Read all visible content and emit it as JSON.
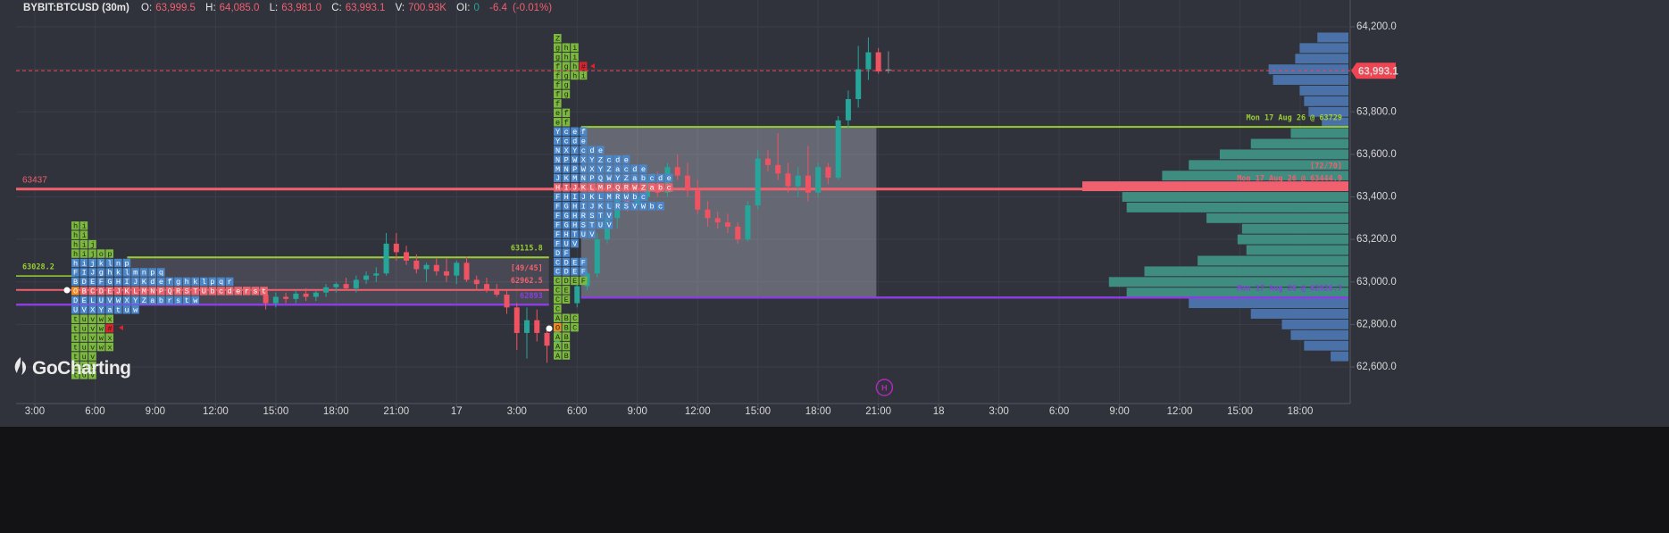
{
  "header": {
    "symbol": "BYBIT:BTCUSD (30m)",
    "o_label": "O:",
    "o": "63,999.5",
    "h_label": "H:",
    "h": "64,085.0",
    "l_label": "L:",
    "l": "63,981.0",
    "c_label": "C:",
    "c": "63,993.1",
    "v_label": "V:",
    "v": "700.93K",
    "oi_label": "OI:",
    "oi": "0",
    "change": "-6.4",
    "change_pct": "(-0.01%)"
  },
  "logo": "GoCharting",
  "chart_data": {
    "type": "candlestick",
    "xlim": [
      2.07,
      68.4
    ],
    "xticks": [
      {
        "value": 3,
        "label": "3:00"
      },
      {
        "value": 6,
        "label": "6:00"
      },
      {
        "value": 9,
        "label": "9:00"
      },
      {
        "value": 12,
        "label": "12:00"
      },
      {
        "value": 15,
        "label": "15:00"
      },
      {
        "value": 18,
        "label": "18:00"
      },
      {
        "value": 21,
        "label": "21:00"
      },
      {
        "value": 24,
        "label": "17"
      },
      {
        "value": 27,
        "label": "3:00"
      },
      {
        "value": 30,
        "label": "6:00"
      },
      {
        "value": 33,
        "label": "9:00"
      },
      {
        "value": 36,
        "label": "12:00"
      },
      {
        "value": 39,
        "label": "15:00"
      },
      {
        "value": 42,
        "label": "18:00"
      },
      {
        "value": 45,
        "label": "21:00"
      },
      {
        "value": 48,
        "label": "18"
      },
      {
        "value": 51,
        "label": "3:00"
      },
      {
        "value": 54,
        "label": "6:00"
      },
      {
        "value": 57,
        "label": "9:00"
      },
      {
        "value": 60,
        "label": "12:00"
      },
      {
        "value": 63,
        "label": "15:00"
      },
      {
        "value": 66,
        "label": "18:00"
      }
    ],
    "ylim": [
      62428,
      64326
    ],
    "yticks": [
      {
        "value": 62600,
        "label": "62,600.0"
      },
      {
        "value": 62800,
        "label": "62,800.0"
      },
      {
        "value": 63000,
        "label": "63,000.0"
      },
      {
        "value": 63200,
        "label": "63,200.0"
      },
      {
        "value": 63400,
        "label": "63,400.0"
      },
      {
        "value": 63600,
        "label": "63,600.0"
      },
      {
        "value": 63800,
        "label": "63,800.0"
      },
      {
        "value": 64000,
        "label": "64,000.0"
      },
      {
        "value": 64200,
        "label": "64,200.0"
      }
    ],
    "grid": true,
    "up_color": "#26a69a",
    "down_color": "#ef5362",
    "last_color": "#8a8a90",
    "candles": {
      "x": [
        14.5,
        15,
        15.5,
        16,
        16.5,
        17,
        17.5,
        18,
        18.5,
        19,
        19.5,
        20,
        20.5,
        21,
        21.5,
        22,
        22.5,
        23,
        23.5,
        24,
        24.5,
        25,
        25.5,
        26,
        26.5,
        27,
        27.5,
        28,
        28.5,
        29,
        30,
        30.5,
        31,
        31.5,
        32,
        32.5,
        33,
        33.5,
        34,
        34.5,
        35,
        35.5,
        36,
        36.5,
        37,
        37.5,
        38,
        38.5,
        39,
        39.5,
        40,
        40.5,
        41,
        41.5,
        42,
        42.5,
        43,
        43.5,
        44,
        44.5,
        45,
        45.5
      ],
      "open": [
        62940,
        62900,
        62930,
        62920,
        62945,
        62930,
        62950,
        62975,
        62990,
        62970,
        63010,
        63030,
        63040,
        63180,
        63140,
        63100,
        63060,
        63080,
        63050,
        63030,
        63090,
        63010,
        62990,
        62960,
        62940,
        62880,
        62760,
        62820,
        62760,
        62700,
        62900,
        62980,
        63040,
        63200,
        63300,
        63400,
        63360,
        63400,
        63460,
        63420,
        63540,
        63500,
        63430,
        63340,
        63300,
        63280,
        63260,
        63200,
        63360,
        63580,
        63550,
        63510,
        63450,
        63500,
        63420,
        63540,
        63490,
        63760,
        63860,
        64000,
        64080,
        63999.5
      ],
      "high": [
        62960,
        62950,
        62950,
        62960,
        62970,
        62960,
        62990,
        63000,
        63020,
        63030,
        63050,
        63070,
        63230,
        63230,
        63170,
        63130,
        63090,
        63110,
        63110,
        63100,
        63120,
        63030,
        63020,
        62990,
        62960,
        62900,
        62880,
        62870,
        62790,
        62800,
        63000,
        63050,
        63230,
        63320,
        63440,
        63450,
        63420,
        63480,
        63520,
        63560,
        63600,
        63560,
        63480,
        63380,
        63330,
        63320,
        63280,
        63380,
        63620,
        63620,
        63700,
        63560,
        63540,
        63640,
        63560,
        63560,
        63780,
        63900,
        64110,
        64150,
        64100,
        64085
      ],
      "low": [
        62870,
        62880,
        62900,
        62900,
        62910,
        62910,
        62930,
        62950,
        62960,
        62950,
        62990,
        63000,
        63030,
        63100,
        63080,
        63040,
        63000,
        63030,
        63000,
        62990,
        63000,
        62960,
        62950,
        62930,
        62850,
        62680,
        62640,
        62720,
        62620,
        62660,
        62880,
        62960,
        63020,
        63180,
        63250,
        63330,
        63340,
        63380,
        63400,
        63400,
        63480,
        63400,
        63320,
        63260,
        63250,
        63230,
        63180,
        63190,
        63340,
        63520,
        63480,
        63420,
        63400,
        63380,
        63400,
        63460,
        63480,
        63720,
        63820,
        63950,
        63980,
        63981
      ],
      "close": [
        62900,
        62930,
        62920,
        62945,
        62930,
        62950,
        62975,
        62990,
        62970,
        63010,
        63030,
        63040,
        63180,
        63140,
        63100,
        63060,
        63080,
        63050,
        63030,
        63090,
        63010,
        62990,
        62960,
        62940,
        62880,
        62760,
        62820,
        62760,
        62700,
        62780,
        62980,
        63040,
        63200,
        63300,
        63400,
        63360,
        63400,
        63460,
        63420,
        63540,
        63500,
        63430,
        63340,
        63300,
        63280,
        63260,
        63200,
        63360,
        63580,
        63550,
        63510,
        63450,
        63500,
        63420,
        63540,
        63490,
        63760,
        63860,
        64000,
        64080,
        63990,
        63993.1
      ]
    },
    "value_areas": [
      {
        "x": [
          7.6,
          28.6
        ],
        "y": [
          62893,
          63115.8
        ],
        "color": "rgba(190,192,205,0.16)"
      },
      {
        "x": [
          30.2,
          44.9
        ],
        "y": [
          62926.7,
          63729
        ],
        "color": "rgba(190,192,205,0.38)"
      }
    ],
    "levels": [
      {
        "value": 63437,
        "label": "63437",
        "label_at": "start",
        "color": "#f0606e",
        "x": [
          2.07,
          68.4
        ],
        "width": 3
      },
      {
        "value": 63028.2,
        "label": "63028.2",
        "label_at": "start",
        "color": "#9acd32",
        "x": [
          2.07,
          5.0
        ],
        "width": 1.5
      },
      {
        "value": 63115.8,
        "label": "63115.8",
        "label_at": "end",
        "color": "#9acd32",
        "x": [
          7.6,
          28.6
        ],
        "width": 2
      },
      {
        "value": 62962.5,
        "label": "62962.5",
        "note": "[49/45]",
        "label_at": "end",
        "color": "#f0606e",
        "x": [
          2.07,
          28.6
        ],
        "width": 2
      },
      {
        "value": 62893,
        "label": "62893",
        "label_at": "end",
        "color": "#8a3ee0",
        "x": [
          2.07,
          28.6
        ],
        "width": 2.5
      },
      {
        "value": 63729,
        "label": "Mon 17 Aug 26 @ 63729",
        "label_at": "end",
        "color": "#9acd32",
        "x": [
          30.2,
          68.4
        ],
        "width": 2
      },
      {
        "value": 63444.9,
        "label": "Mon 17 Aug 26 @ 63444.9",
        "note": "[72/70]",
        "label_at": "end",
        "color": "#f0606e"
      },
      {
        "value": 62926.7,
        "label": "Mon 17 Aug 26 @ 62926.7",
        "label_at": "end",
        "color": "#8a3ee0",
        "x": [
          30.2,
          68.4
        ],
        "width": 2.5
      }
    ],
    "current_price": {
      "value": 63993.1,
      "label": "63,993.1",
      "color": "#ef4452"
    },
    "volume_profile": {
      "prices": [
        64150,
        64100,
        64050,
        64000,
        63950,
        63900,
        63850,
        63800,
        63750,
        63700,
        63650,
        63600,
        63550,
        63500,
        63450,
        63400,
        63350,
        63300,
        63250,
        63200,
        63150,
        63100,
        63050,
        63000,
        62950,
        62900,
        62850,
        62800,
        62750,
        62700,
        62650
      ],
      "values": [
        35,
        55,
        60,
        90,
        85,
        55,
        50,
        45,
        30,
        65,
        110,
        145,
        180,
        210,
        300,
        255,
        250,
        160,
        120,
        125,
        115,
        170,
        230,
        270,
        250,
        180,
        110,
        75,
        65,
        50,
        20
      ],
      "poc": 63437,
      "vah": 63729,
      "val": 62926.7,
      "colors": {
        "outside": "#4a72a8",
        "inside": "#3f8c80",
        "poc": "#f0606e"
      }
    },
    "tpo_blocks": [
      {
        "rows": [
          {
            "text": "hi",
            "color": "#7cb83f"
          },
          {
            "text": "hi",
            "color": "#7cb83f"
          },
          {
            "text": "hij",
            "color": "#7cb83f"
          },
          {
            "text": "hijop",
            "color": "#7cb83f"
          },
          {
            "text": "hijklnp",
            "color": "#4a86c8"
          },
          {
            "text": "FIJghklmnpq",
            "color": "#4a86c8"
          },
          {
            "text": "BDEFGHIJKdefghklpqr",
            "color": "#4a86c8"
          },
          {
            "text": "OBCDEJKLMNPQRSTUbcderst",
            "color": "#e8636e"
          },
          {
            "text": "DELUVWXYZabrstw",
            "color": "#4a86c8"
          },
          {
            "text": "UVXYatuw",
            "color": "#4a86c8"
          },
          {
            "text": "tuvwx",
            "color": "#7cb83f"
          },
          {
            "text": "tuvw#",
            "color": "#7cb83f"
          },
          {
            "text": "tuvwx",
            "color": "#7cb83f"
          },
          {
            "text": "tuvwx",
            "color": "#7cb83f"
          },
          {
            "text": "tuv",
            "color": "#7cb83f"
          },
          {
            "text": "tuv",
            "color": "#7cb83f"
          },
          {
            "text": "tuv",
            "color": "#7cb83f"
          }
        ]
      },
      {
        "rows": [
          {
            "text": "Z",
            "color": "#7cb83f"
          },
          {
            "text": "ghi",
            "color": "#7cb83f"
          },
          {
            "text": "ghi",
            "color": "#7cb83f"
          },
          {
            "text": "fgh#",
            "color": "#7cb83f"
          },
          {
            "text": "fghi",
            "color": "#7cb83f"
          },
          {
            "text": "fg",
            "color": "#7cb83f"
          },
          {
            "text": "fg",
            "color": "#7cb83f"
          },
          {
            "text": "f",
            "color": "#7cb83f"
          },
          {
            "text": "ef",
            "color": "#7cb83f"
          },
          {
            "text": "ef",
            "color": "#7cb83f"
          },
          {
            "text": "Ycef",
            "color": "#4a86c8"
          },
          {
            "text": "Ycde",
            "color": "#4a86c8"
          },
          {
            "text": "NXYcde",
            "color": "#4a86c8"
          },
          {
            "text": "NPWXYZcde",
            "color": "#4a86c8"
          },
          {
            "text": "MNPWXYZacde",
            "color": "#4a86c8"
          },
          {
            "text": "JKMNPQWYZabcde",
            "color": "#4a86c8"
          },
          {
            "text": "HIJKLMPQRWZabc",
            "color": "#e8636e"
          },
          {
            "text": "FHIJKLMRWbc",
            "color": "#4a86c8"
          },
          {
            "text": "FGHIJKLRSVWbc",
            "color": "#4a86c8"
          },
          {
            "text": "FGHRSTV",
            "color": "#4a86c8"
          },
          {
            "text": "FGHSTUV",
            "color": "#4a86c8"
          },
          {
            "text": "FHTUV",
            "color": "#4a86c8"
          },
          {
            "text": "FUV",
            "color": "#4a86c8"
          },
          {
            "text": "DF",
            "color": "#4a86c8"
          },
          {
            "text": "CDEF",
            "color": "#4a86c8"
          },
          {
            "text": "CDEF",
            "color": "#4a86c8"
          },
          {
            "text": "CDEF",
            "color": "#7cb83f"
          },
          {
            "text": "CE",
            "color": "#7cb83f"
          },
          {
            "text": "CE",
            "color": "#7cb83f"
          },
          {
            "text": "C",
            "color": "#7cb83f"
          },
          {
            "text": "ABC",
            "color": "#7cb83f"
          },
          {
            "text": "OBC",
            "color": "#7cb83f"
          },
          {
            "text": "AB",
            "color": "#7cb83f"
          },
          {
            "text": "AB",
            "color": "#7cb83f"
          },
          {
            "text": "AB",
            "color": "#7cb83f"
          }
        ]
      }
    ],
    "markers": [
      {
        "text": "H",
        "x": 45.3,
        "color": "#b02ab8"
      }
    ]
  }
}
